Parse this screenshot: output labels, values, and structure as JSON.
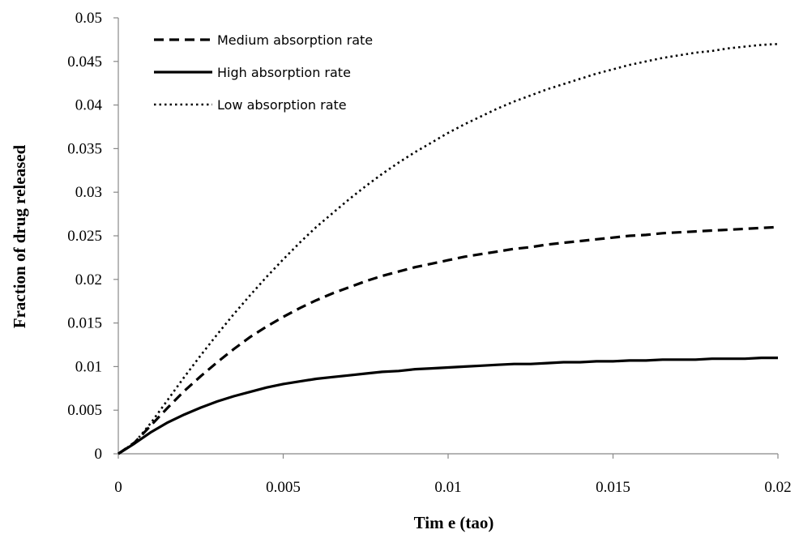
{
  "chart_data": {
    "type": "line",
    "title": "",
    "xlabel": "Tim e (tao)",
    "ylabel": "Fraction of drug released",
    "xlim": [
      0,
      0.02
    ],
    "ylim": [
      0,
      0.05
    ],
    "x_ticks": [
      "0",
      "0.005",
      "0.01",
      "0.015",
      "0.02"
    ],
    "y_ticks": [
      "0",
      "0.005",
      "0.01",
      "0.015",
      "0.02",
      "0.025",
      "0.03",
      "0.035",
      "0.04",
      "0.045",
      "0.05"
    ],
    "grid": false,
    "legend_position": "top-left",
    "x": [
      0,
      0.0005,
      0.001,
      0.0015,
      0.002,
      0.0025,
      0.003,
      0.0035,
      0.004,
      0.0045,
      0.005,
      0.0055,
      0.006,
      0.0065,
      0.007,
      0.0075,
      0.008,
      0.0085,
      0.009,
      0.0095,
      0.01,
      0.0105,
      0.011,
      0.0115,
      0.012,
      0.0125,
      0.013,
      0.0135,
      0.014,
      0.0145,
      0.015,
      0.0155,
      0.016,
      0.0165,
      0.017,
      0.0175,
      0.018,
      0.0185,
      0.019,
      0.0195,
      0.02
    ],
    "series": [
      {
        "name": "Medium absorption rate",
        "style": "dashed",
        "color": "#000000",
        "values": [
          0,
          0.0013,
          0.0033,
          0.0053,
          0.0072,
          0.0089,
          0.0105,
          0.012,
          0.0134,
          0.0146,
          0.0157,
          0.0167,
          0.0176,
          0.0184,
          0.0191,
          0.0198,
          0.0204,
          0.0209,
          0.0214,
          0.0218,
          0.0222,
          0.0226,
          0.0229,
          0.0232,
          0.0235,
          0.0237,
          0.024,
          0.0242,
          0.0244,
          0.0246,
          0.0248,
          0.025,
          0.0251,
          0.0253,
          0.0254,
          0.0255,
          0.0256,
          0.0257,
          0.0258,
          0.0259,
          0.026
        ]
      },
      {
        "name": "High absorption rate",
        "style": "solid",
        "color": "#000000",
        "values": [
          0,
          0.0012,
          0.0025,
          0.0036,
          0.0045,
          0.0053,
          0.006,
          0.0066,
          0.0071,
          0.0076,
          0.008,
          0.0083,
          0.0086,
          0.0088,
          0.009,
          0.0092,
          0.0094,
          0.0095,
          0.0097,
          0.0098,
          0.0099,
          0.01,
          0.0101,
          0.0102,
          0.0103,
          0.0103,
          0.0104,
          0.0105,
          0.0105,
          0.0106,
          0.0106,
          0.0107,
          0.0107,
          0.0108,
          0.0108,
          0.0108,
          0.0109,
          0.0109,
          0.0109,
          0.011,
          0.011
        ]
      },
      {
        "name": "Low absorption rate",
        "style": "dotted",
        "color": "#000000",
        "values": [
          0,
          0.0013,
          0.0036,
          0.0062,
          0.0088,
          0.0113,
          0.0137,
          0.016,
          0.0182,
          0.0203,
          0.0223,
          0.0242,
          0.026,
          0.0276,
          0.0292,
          0.0307,
          0.0321,
          0.0334,
          0.0346,
          0.0357,
          0.0368,
          0.0378,
          0.0387,
          0.0396,
          0.0404,
          0.0411,
          0.0418,
          0.0424,
          0.043,
          0.0436,
          0.0441,
          0.0446,
          0.045,
          0.0454,
          0.0457,
          0.046,
          0.0462,
          0.0465,
          0.0467,
          0.0469,
          0.047
        ]
      }
    ]
  }
}
